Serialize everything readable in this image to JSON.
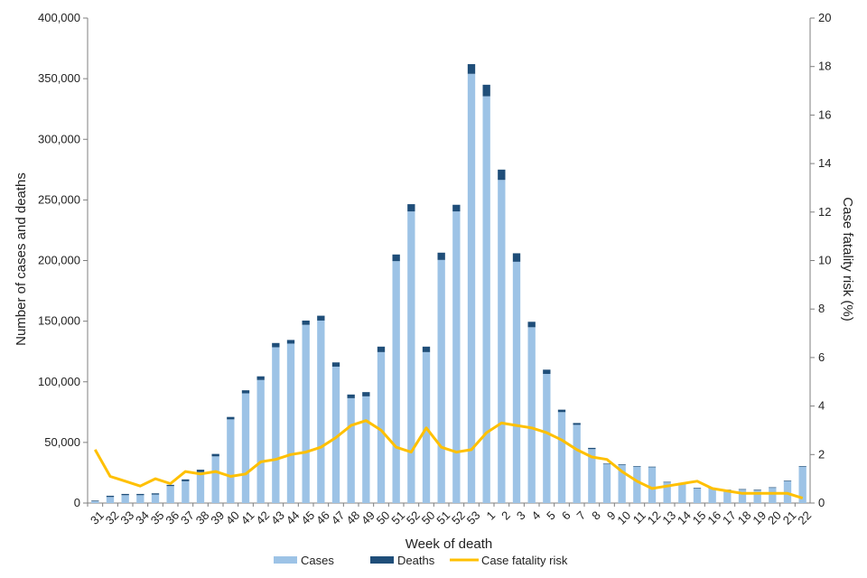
{
  "chart_data": {
    "type": "bar",
    "stacked": true,
    "categories": [
      "31",
      "32",
      "33",
      "34",
      "35",
      "36",
      "37",
      "38",
      "39",
      "40",
      "41",
      "42",
      "43",
      "44",
      "45",
      "46",
      "47",
      "48",
      "49",
      "50",
      "51",
      "52",
      "50",
      "51",
      "52",
      "53",
      "1",
      "2",
      "3",
      "4",
      "5",
      "6",
      "7",
      "8",
      "9",
      "10",
      "11",
      "12",
      "13",
      "14",
      "15",
      "16",
      "17",
      "18",
      "19",
      "20",
      "21",
      "22"
    ],
    "series": [
      {
        "name": "Cases",
        "kind": "bar",
        "axis": "left",
        "color": "#9dc3e6",
        "values": [
          1500,
          5000,
          6500,
          6500,
          7000,
          14000,
          18000,
          25500,
          38500,
          69000,
          90500,
          101500,
          128500,
          131500,
          147000,
          150500,
          112500,
          86500,
          88000,
          124500,
          199500,
          240500,
          124500,
          200500,
          240500,
          354000,
          335500,
          266500,
          199000,
          145000,
          106500,
          75000,
          64500,
          44500,
          32000,
          31500,
          30000,
          29500,
          17000,
          16000,
          12000,
          12000,
          10500,
          11000,
          10500,
          12500,
          18000,
          30000
        ]
      },
      {
        "name": "Deaths",
        "kind": "bar",
        "axis": "left",
        "color": "#1f4e79",
        "values": [
          500,
          1000,
          1000,
          1000,
          1000,
          1000,
          1500,
          2000,
          2000,
          2000,
          2500,
          3000,
          3500,
          3000,
          3500,
          4000,
          3500,
          3000,
          3500,
          4500,
          5500,
          6000,
          4500,
          6000,
          5500,
          8000,
          9500,
          8500,
          7000,
          4500,
          3500,
          2000,
          1500,
          1000,
          500,
          500,
          500,
          500,
          500,
          500,
          500,
          500,
          500,
          500,
          500,
          500,
          500,
          500
        ]
      },
      {
        "name": "Case fatality risk",
        "kind": "line",
        "axis": "right",
        "color": "#ffc000",
        "values": [
          2.2,
          1.1,
          0.9,
          0.7,
          1.0,
          0.8,
          1.3,
          1.2,
          1.3,
          1.1,
          1.2,
          1.7,
          1.8,
          2.0,
          2.1,
          2.3,
          2.7,
          3.2,
          3.4,
          3.0,
          2.3,
          2.1,
          3.1,
          2.3,
          2.1,
          2.2,
          2.9,
          3.3,
          3.2,
          3.1,
          2.9,
          2.6,
          2.2,
          1.9,
          1.8,
          1.3,
          0.9,
          0.6,
          0.7,
          0.8,
          0.9,
          0.6,
          0.5,
          0.4,
          0.4,
          0.4,
          0.4,
          0.2
        ]
      }
    ],
    "xlabel": "Week of death",
    "ylabel": "Number of cases and deaths",
    "y2label": "Case fatality risk (%)",
    "ylim": [
      0,
      400000
    ],
    "y2lim": [
      0,
      20
    ],
    "yticks": [
      "0",
      "50,000",
      "100,000",
      "150,000",
      "200,000",
      "250,000",
      "300,000",
      "350,000",
      "400,000"
    ],
    "y2ticks": [
      "0",
      "2",
      "4",
      "6",
      "8",
      "10",
      "12",
      "14",
      "16",
      "18",
      "20"
    ],
    "grid": false,
    "legend": {
      "position": "bottom",
      "entries": [
        "Cases",
        "Deaths",
        "Case fatality risk"
      ]
    }
  }
}
